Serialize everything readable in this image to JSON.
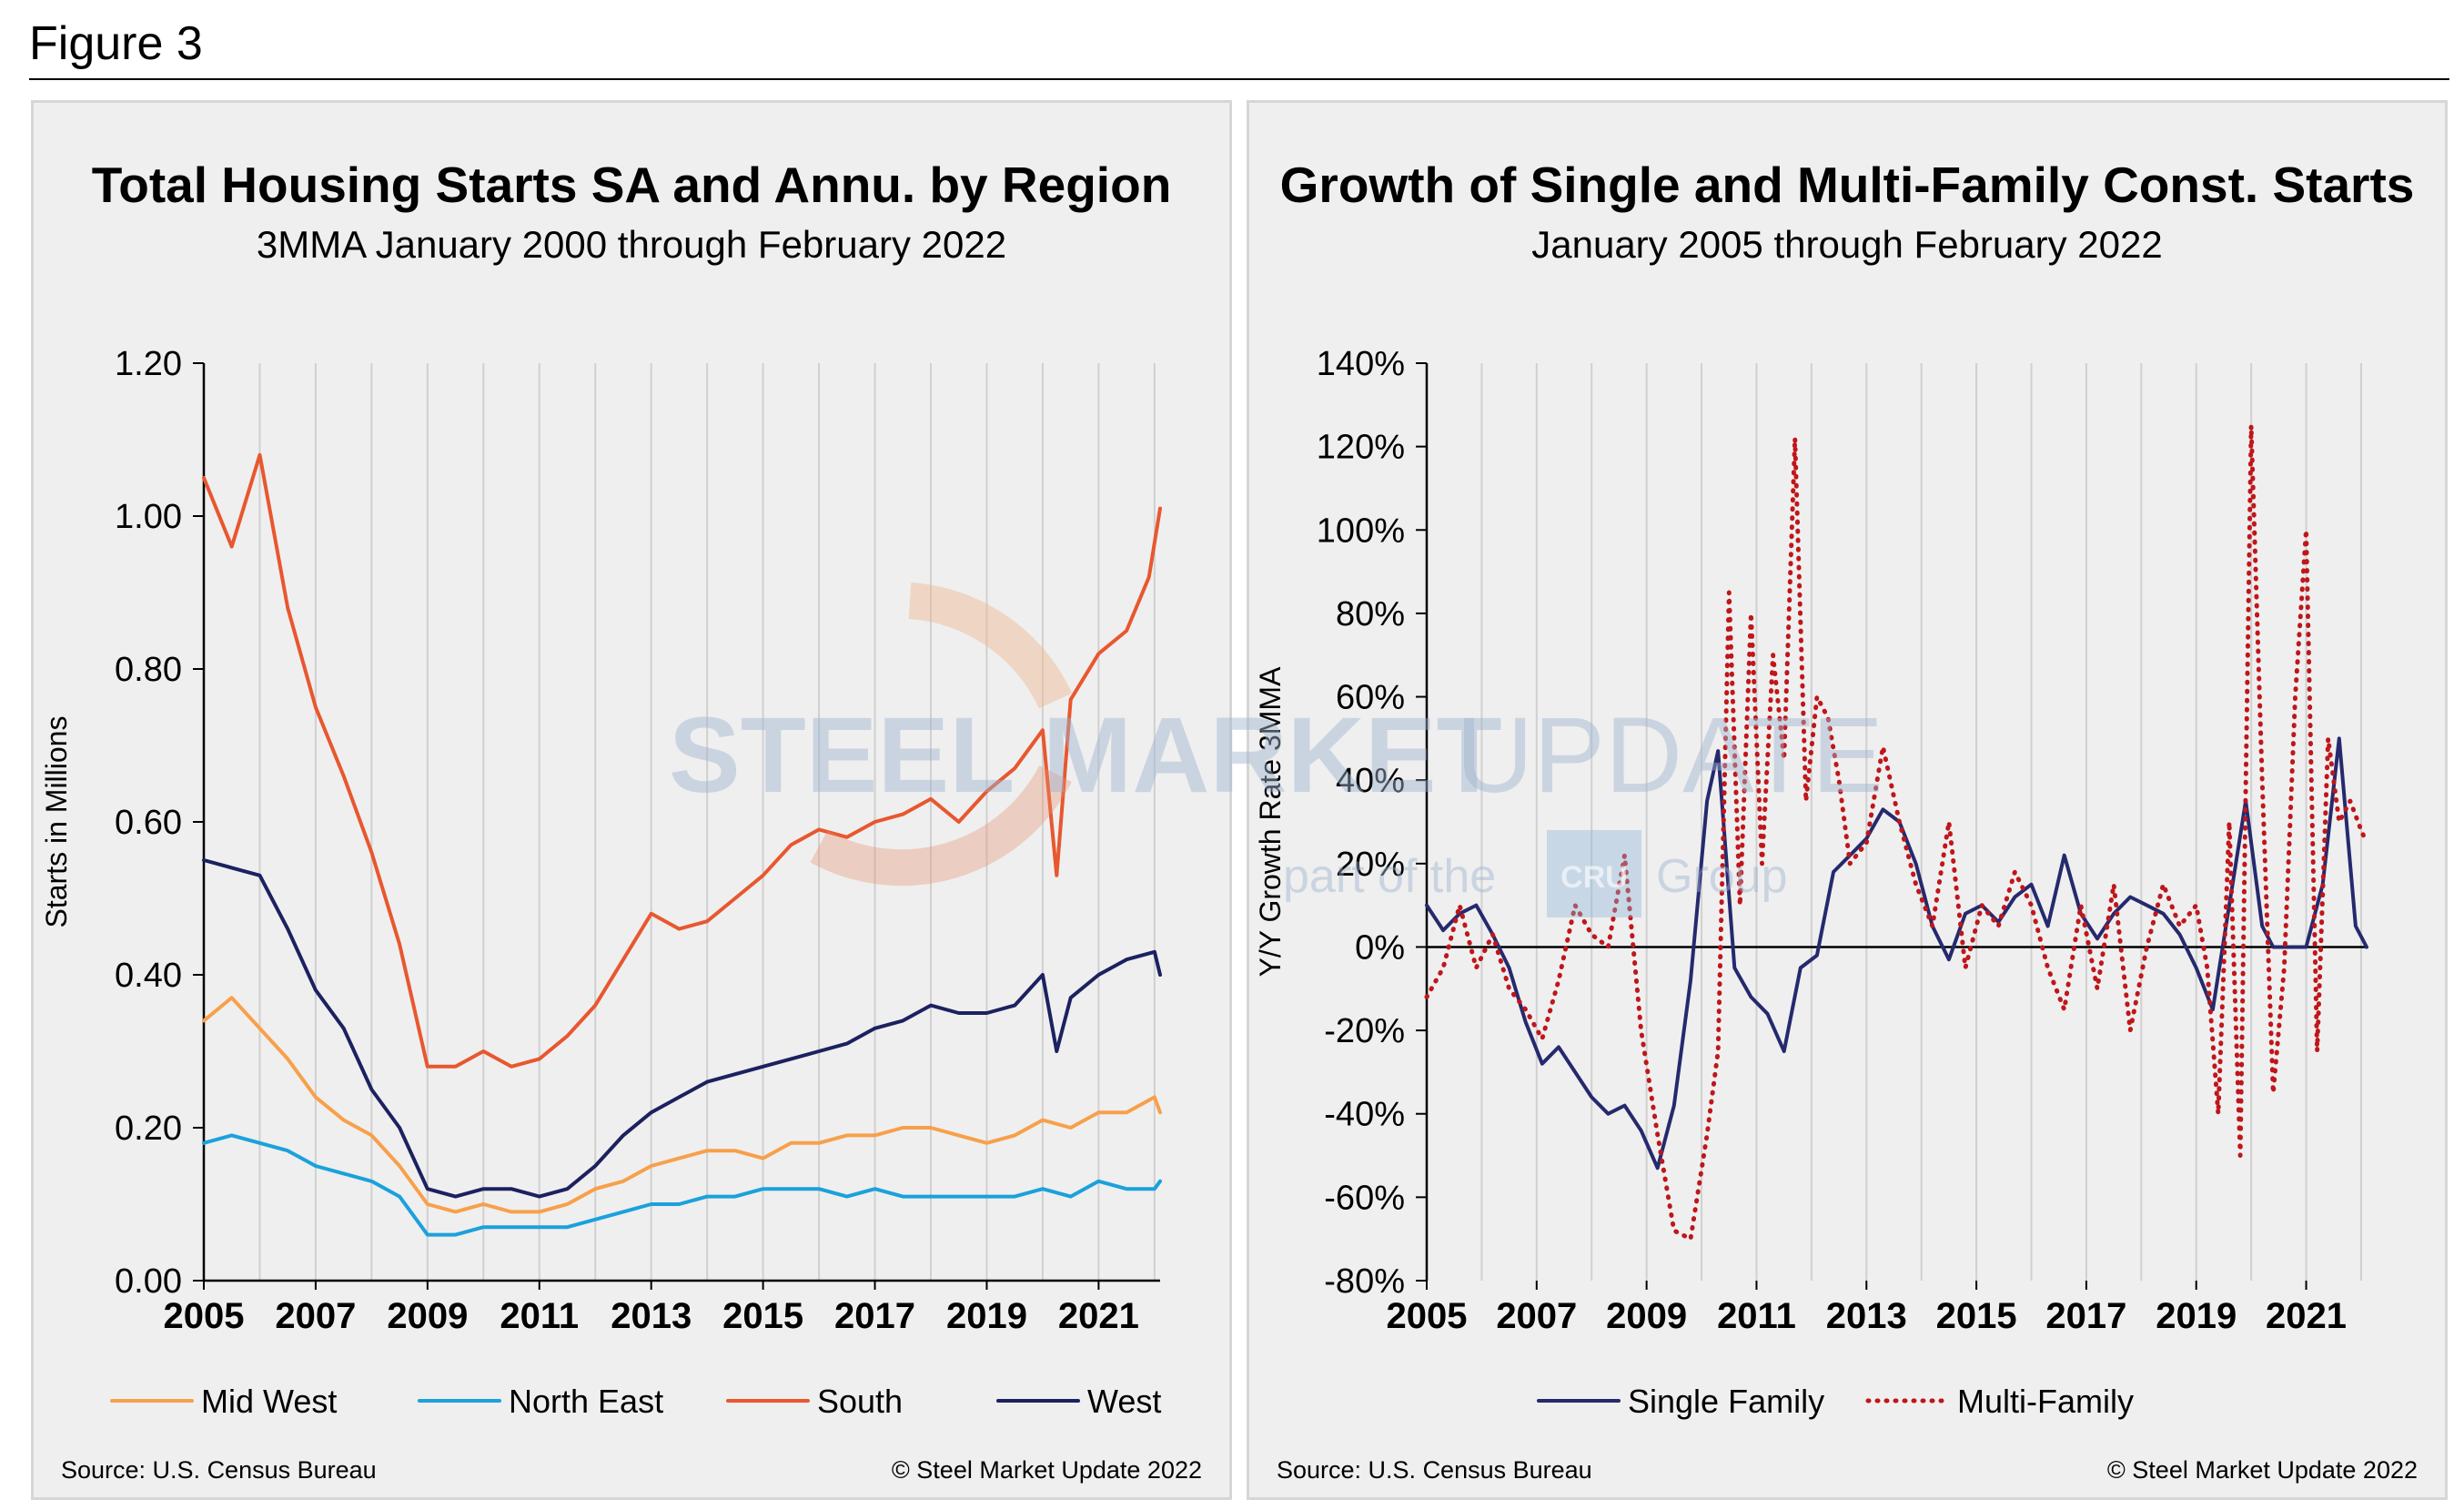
{
  "figure_label": "Figure 3",
  "watermark": {
    "brand_bold": "STEEL MARKET",
    "brand_light": "UPDATE",
    "tag_pre": "part of the",
    "tag_post": "Group",
    "logo_text": "CRU"
  },
  "chart_data": [
    {
      "type": "line",
      "title": "Total Housing Starts SA and Annu. by Region",
      "subtitle": "3MMA January 2000 through February 2022",
      "ylabel": "Starts in Millions",
      "ylim": [
        0,
        1.2
      ],
      "yticks": [
        0.0,
        0.2,
        0.4,
        0.6,
        0.8,
        1.0,
        1.2
      ],
      "ytick_labels": [
        "0.00",
        "0.20",
        "0.40",
        "0.60",
        "0.80",
        "1.00",
        "1.20"
      ],
      "xlim": [
        2005.0,
        2022.1
      ],
      "xtick_labels": [
        "2005",
        "2007",
        "2009",
        "2011",
        "2013",
        "2015",
        "2017",
        "2019",
        "2021"
      ],
      "source": "Source: U.S. Census Bureau",
      "copyright": "© Steel Market Update 2022",
      "series": [
        {
          "name": "Mid West",
          "color": "#f7a04b",
          "style": "solid",
          "x": [
            2005.0,
            2005.5,
            2006.0,
            2006.5,
            2007.0,
            2007.5,
            2008.0,
            2008.5,
            2009.0,
            2009.5,
            2010.0,
            2010.5,
            2011.0,
            2011.5,
            2012.0,
            2012.5,
            2013.0,
            2013.5,
            2014.0,
            2014.5,
            2015.0,
            2015.5,
            2016.0,
            2016.5,
            2017.0,
            2017.5,
            2018.0,
            2018.5,
            2019.0,
            2019.5,
            2020.0,
            2020.5,
            2021.0,
            2021.5,
            2022.0,
            2022.1
          ],
          "y": [
            0.34,
            0.37,
            0.33,
            0.29,
            0.24,
            0.21,
            0.19,
            0.15,
            0.1,
            0.09,
            0.1,
            0.09,
            0.09,
            0.1,
            0.12,
            0.13,
            0.15,
            0.16,
            0.17,
            0.17,
            0.16,
            0.18,
            0.18,
            0.19,
            0.19,
            0.2,
            0.2,
            0.19,
            0.18,
            0.19,
            0.21,
            0.2,
            0.22,
            0.22,
            0.24,
            0.22
          ]
        },
        {
          "name": "North East",
          "color": "#1ba1dc",
          "style": "solid",
          "x": [
            2005.0,
            2005.5,
            2006.0,
            2006.5,
            2007.0,
            2007.5,
            2008.0,
            2008.5,
            2009.0,
            2009.5,
            2010.0,
            2010.5,
            2011.0,
            2011.5,
            2012.0,
            2012.5,
            2013.0,
            2013.5,
            2014.0,
            2014.5,
            2015.0,
            2015.5,
            2016.0,
            2016.5,
            2017.0,
            2017.5,
            2018.0,
            2018.5,
            2019.0,
            2019.5,
            2020.0,
            2020.5,
            2021.0,
            2021.5,
            2022.0,
            2022.1
          ],
          "y": [
            0.18,
            0.19,
            0.18,
            0.17,
            0.15,
            0.14,
            0.13,
            0.11,
            0.06,
            0.06,
            0.07,
            0.07,
            0.07,
            0.07,
            0.08,
            0.09,
            0.1,
            0.1,
            0.11,
            0.11,
            0.12,
            0.12,
            0.12,
            0.11,
            0.12,
            0.11,
            0.11,
            0.11,
            0.11,
            0.11,
            0.12,
            0.11,
            0.13,
            0.12,
            0.12,
            0.13
          ]
        },
        {
          "name": "South",
          "color": "#e8572f",
          "style": "solid",
          "x": [
            2005.0,
            2005.5,
            2006.0,
            2006.5,
            2007.0,
            2007.5,
            2008.0,
            2008.5,
            2009.0,
            2009.5,
            2010.0,
            2010.5,
            2011.0,
            2011.5,
            2012.0,
            2012.5,
            2013.0,
            2013.5,
            2014.0,
            2014.5,
            2015.0,
            2015.5,
            2016.0,
            2016.5,
            2017.0,
            2017.5,
            2018.0,
            2018.5,
            2019.0,
            2019.5,
            2020.0,
            2020.25,
            2020.5,
            2021.0,
            2021.5,
            2021.9,
            2022.1
          ],
          "y": [
            1.05,
            0.96,
            1.08,
            0.88,
            0.75,
            0.66,
            0.56,
            0.44,
            0.28,
            0.28,
            0.3,
            0.28,
            0.29,
            0.32,
            0.36,
            0.42,
            0.48,
            0.46,
            0.47,
            0.5,
            0.53,
            0.57,
            0.59,
            0.58,
            0.6,
            0.61,
            0.63,
            0.6,
            0.64,
            0.67,
            0.72,
            0.53,
            0.76,
            0.82,
            0.85,
            0.92,
            1.01
          ]
        },
        {
          "name": "West",
          "color": "#1c2160",
          "style": "solid",
          "x": [
            2005.0,
            2005.5,
            2006.0,
            2006.5,
            2007.0,
            2007.5,
            2008.0,
            2008.5,
            2009.0,
            2009.5,
            2010.0,
            2010.5,
            2011.0,
            2011.5,
            2012.0,
            2012.5,
            2013.0,
            2013.5,
            2014.0,
            2014.5,
            2015.0,
            2015.5,
            2016.0,
            2016.5,
            2017.0,
            2017.5,
            2018.0,
            2018.5,
            2019.0,
            2019.5,
            2020.0,
            2020.25,
            2020.5,
            2021.0,
            2021.5,
            2022.0,
            2022.1
          ],
          "y": [
            0.55,
            0.54,
            0.53,
            0.46,
            0.38,
            0.33,
            0.25,
            0.2,
            0.12,
            0.11,
            0.12,
            0.12,
            0.11,
            0.12,
            0.15,
            0.19,
            0.22,
            0.24,
            0.26,
            0.27,
            0.28,
            0.29,
            0.3,
            0.31,
            0.33,
            0.34,
            0.36,
            0.35,
            0.35,
            0.36,
            0.4,
            0.3,
            0.37,
            0.4,
            0.42,
            0.43,
            0.4
          ]
        }
      ]
    },
    {
      "type": "line",
      "title": "Growth of Single and Multi-Family Const. Starts",
      "subtitle": "January 2005 through February 2022",
      "ylabel": "Y/Y Growth Rate 3MMA",
      "ylim": [
        -80,
        140
      ],
      "yticks": [
        -80,
        -60,
        -40,
        -20,
        0,
        20,
        40,
        60,
        80,
        100,
        120,
        140
      ],
      "ytick_labels": [
        "-80%",
        "-60%",
        "-40%",
        "-20%",
        "0%",
        "20%",
        "40%",
        "60%",
        "80%",
        "100%",
        "120%",
        "140%"
      ],
      "xlim": [
        2005.0,
        2022.1
      ],
      "xtick_labels": [
        "2005",
        "2007",
        "2009",
        "2011",
        "2013",
        "2015",
        "2017",
        "2019",
        "2021"
      ],
      "source": "Source: U.S. Census Bureau",
      "copyright": "© Steel Market Update 2022",
      "series": [
        {
          "name": "Single Family",
          "color": "#252a6e",
          "style": "solid",
          "x": [
            2005.0,
            2005.3,
            2005.6,
            2005.9,
            2006.2,
            2006.5,
            2006.8,
            2007.1,
            2007.4,
            2007.7,
            2008.0,
            2008.3,
            2008.6,
            2008.9,
            2009.2,
            2009.5,
            2009.8,
            2010.1,
            2010.3,
            2010.6,
            2010.9,
            2011.2,
            2011.5,
            2011.8,
            2012.1,
            2012.4,
            2012.7,
            2013.0,
            2013.3,
            2013.6,
            2013.9,
            2014.2,
            2014.5,
            2014.8,
            2015.1,
            2015.4,
            2015.7,
            2016.0,
            2016.3,
            2016.6,
            2016.9,
            2017.2,
            2017.5,
            2017.8,
            2018.1,
            2018.4,
            2018.7,
            2019.0,
            2019.3,
            2019.6,
            2019.9,
            2020.2,
            2020.4,
            2020.7,
            2021.0,
            2021.3,
            2021.6,
            2021.9,
            2022.1
          ],
          "y": [
            10,
            4,
            8,
            10,
            3,
            -5,
            -18,
            -28,
            -24,
            -30,
            -36,
            -40,
            -38,
            -44,
            -53,
            -38,
            -8,
            35,
            47,
            -5,
            -12,
            -16,
            -25,
            -5,
            -2,
            18,
            22,
            26,
            33,
            30,
            20,
            5,
            -3,
            8,
            10,
            6,
            12,
            15,
            5,
            22,
            8,
            2,
            8,
            12,
            10,
            8,
            3,
            -5,
            -15,
            10,
            35,
            5,
            0,
            0,
            0,
            15,
            50,
            5,
            0
          ]
        },
        {
          "name": "Multi-Family",
          "color": "#c0161a",
          "style": "dotted",
          "x": [
            2005.0,
            2005.3,
            2005.6,
            2005.9,
            2006.2,
            2006.5,
            2006.8,
            2007.1,
            2007.4,
            2007.7,
            2008.0,
            2008.3,
            2008.6,
            2008.9,
            2009.2,
            2009.5,
            2009.8,
            2010.1,
            2010.3,
            2010.5,
            2010.7,
            2010.9,
            2011.1,
            2011.3,
            2011.5,
            2011.7,
            2011.9,
            2012.1,
            2012.3,
            2012.5,
            2012.7,
            2013.0,
            2013.3,
            2013.6,
            2013.9,
            2014.2,
            2014.5,
            2014.8,
            2015.1,
            2015.4,
            2015.7,
            2016.0,
            2016.3,
            2016.6,
            2016.9,
            2017.2,
            2017.5,
            2017.8,
            2018.1,
            2018.4,
            2018.7,
            2019.0,
            2019.2,
            2019.4,
            2019.6,
            2019.8,
            2020.0,
            2020.2,
            2020.4,
            2020.6,
            2020.8,
            2021.0,
            2021.2,
            2021.4,
            2021.6,
            2021.8,
            2022.0,
            2022.1
          ],
          "y": [
            -12,
            -5,
            10,
            -5,
            3,
            -10,
            -15,
            -22,
            -8,
            10,
            3,
            0,
            22,
            -20,
            -45,
            -68,
            -70,
            -45,
            -25,
            85,
            10,
            80,
            20,
            70,
            45,
            122,
            35,
            60,
            55,
            40,
            20,
            25,
            48,
            30,
            15,
            5,
            30,
            -5,
            10,
            5,
            18,
            10,
            -5,
            -15,
            10,
            -10,
            15,
            -20,
            0,
            15,
            5,
            10,
            -5,
            -40,
            30,
            -50,
            125,
            40,
            -35,
            -5,
            60,
            100,
            -25,
            50,
            30,
            35,
            28,
            25
          ]
        }
      ]
    }
  ]
}
